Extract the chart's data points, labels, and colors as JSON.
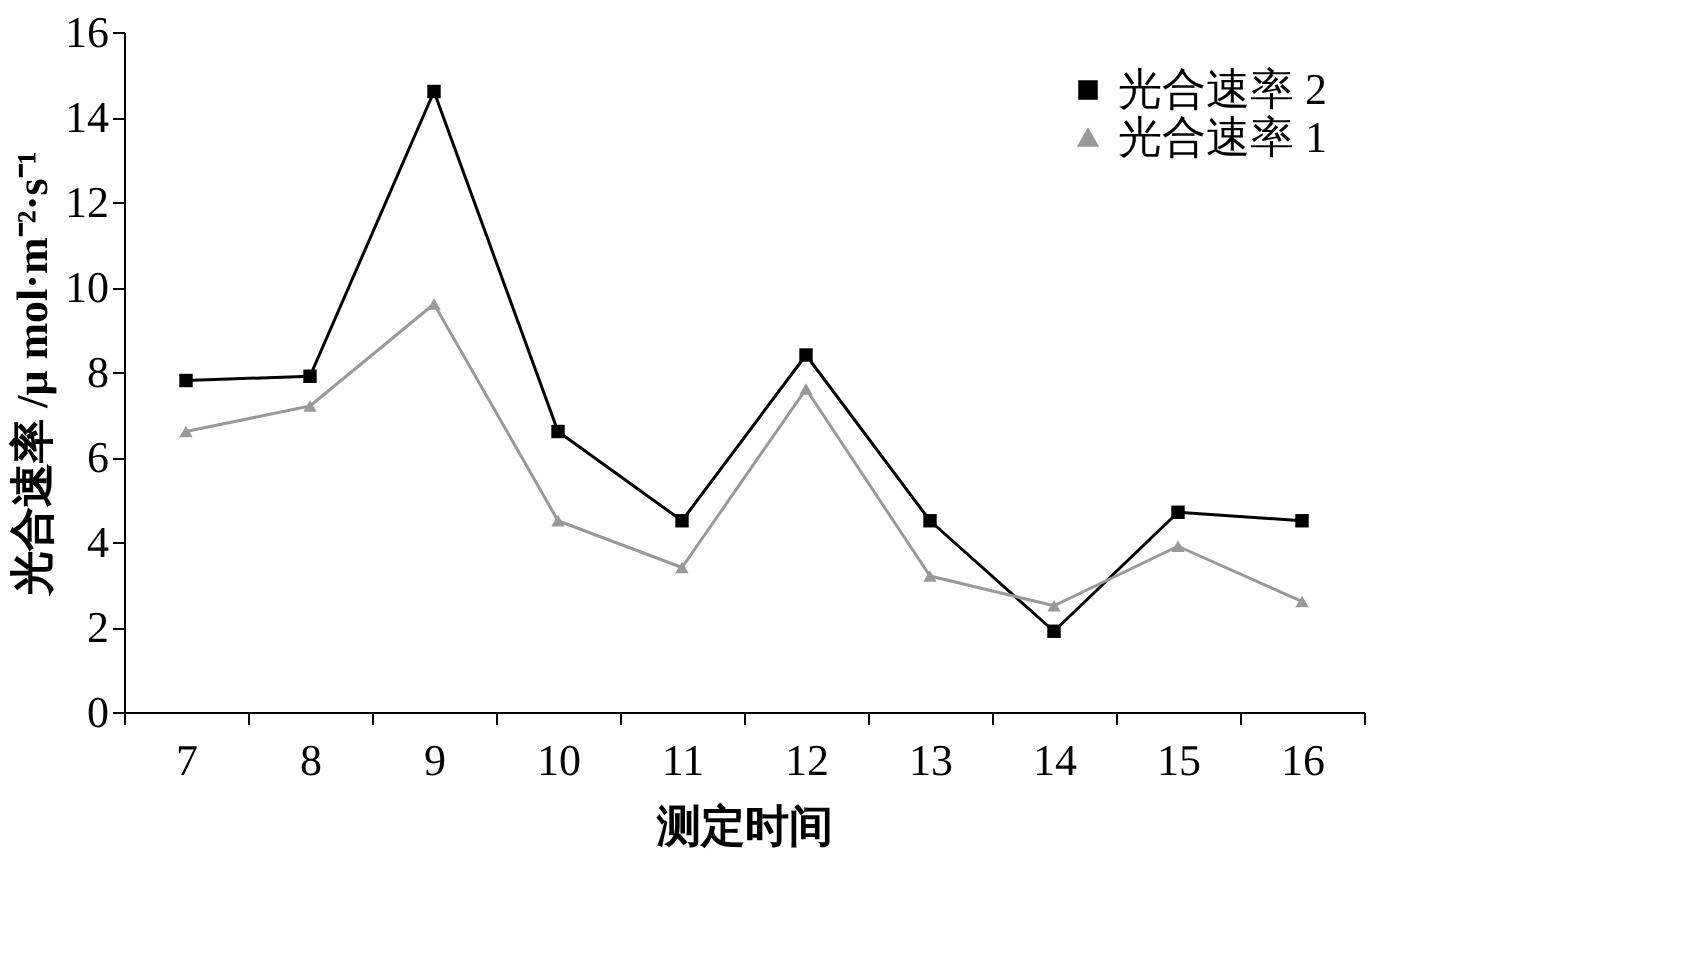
{
  "chart_data": {
    "type": "line",
    "xlabel": "测定时间",
    "ylabel": "光合速率 /μ mol·m⁻²·s⁻¹",
    "categories": [
      "7",
      "8",
      "9",
      "10",
      "11",
      "12",
      "13",
      "14",
      "15",
      "16"
    ],
    "series": [
      {
        "name": "光合速率 2",
        "color": "#000000",
        "marker": "square",
        "values": [
          7.8,
          7.9,
          14.6,
          6.6,
          4.5,
          8.4,
          4.5,
          1.9,
          4.7,
          4.5
        ]
      },
      {
        "name": "光合速率 1",
        "color": "#999999",
        "marker": "triangle",
        "values": [
          6.6,
          7.2,
          9.6,
          4.5,
          3.4,
          7.6,
          3.2,
          2.5,
          3.9,
          2.6
        ]
      }
    ],
    "ylim": [
      0,
      16
    ],
    "yticks": [
      0,
      2,
      4,
      6,
      8,
      10,
      12,
      14,
      16
    ],
    "grid": false,
    "legend": "top right",
    "line_style": "solid"
  }
}
